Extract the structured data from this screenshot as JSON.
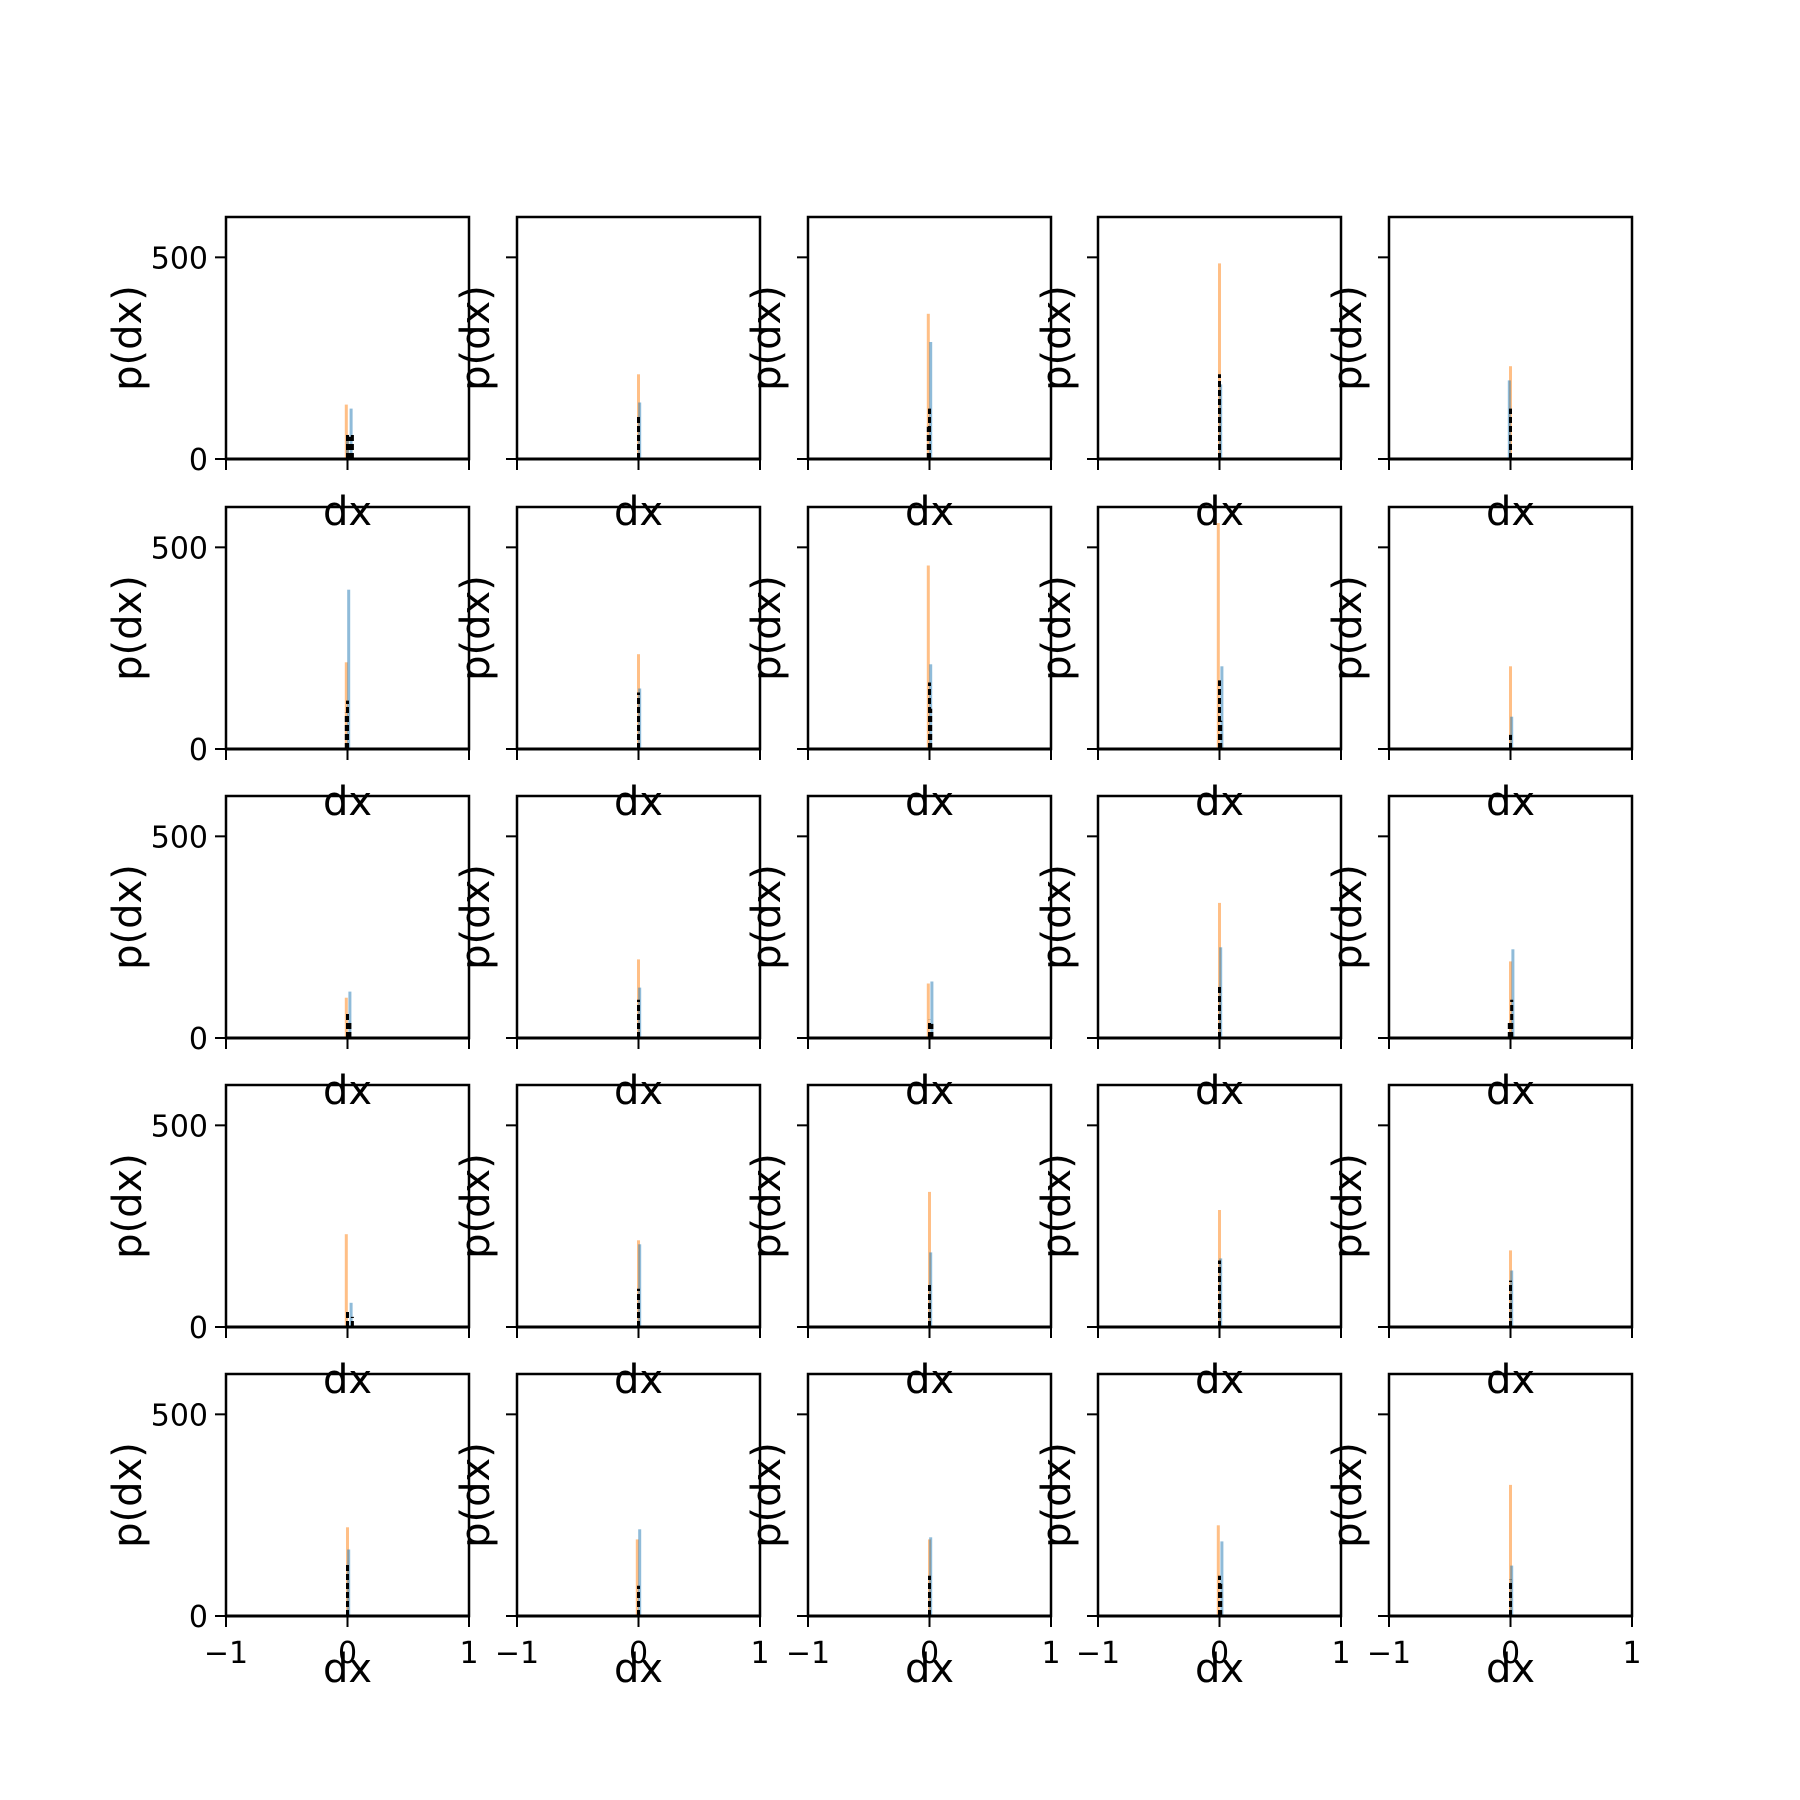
{
  "figure": {
    "background": "#ffffff"
  },
  "style": {
    "blue": "#1f77b4",
    "orange": "#ff7f0e",
    "black": "#000000",
    "bar_alpha": 0.5
  },
  "chart_data": {
    "type": "histogram-grid",
    "rows": 5,
    "cols": 5,
    "sharex": true,
    "sharey": true,
    "xlim": [
      -1,
      1
    ],
    "ylim": [
      0,
      600
    ],
    "xticks": [
      -1,
      0,
      1
    ],
    "xtick_labels": [
      "−1",
      "0",
      "1"
    ],
    "yticks": [
      0,
      500
    ],
    "ytick_labels": [
      "0",
      "500"
    ],
    "xlabel": "dx",
    "ylabel": "p(dx)",
    "series_colors": {
      "blue": "#1f77b4",
      "orange": "#ff7f0e",
      "black": "#000000"
    },
    "panels": [
      {
        "row": 0,
        "col": 0,
        "orange": [
          [
            -0.01,
            135
          ],
          [
            0.0,
            60
          ]
        ],
        "blue": [
          [
            0.03,
            125
          ],
          [
            0.0,
            50
          ]
        ],
        "black": [
          [
            0.0,
            65
          ],
          [
            0.02,
            55
          ],
          [
            0.04,
            60
          ]
        ]
      },
      {
        "row": 0,
        "col": 1,
        "orange": [
          [
            0.0,
            210
          ]
        ],
        "blue": [
          [
            0.01,
            140
          ]
        ],
        "black": [
          [
            0.0,
            105
          ]
        ]
      },
      {
        "row": 0,
        "col": 2,
        "orange": [
          [
            -0.01,
            360
          ]
        ],
        "blue": [
          [
            0.01,
            290
          ]
        ],
        "black": [
          [
            0.0,
            125
          ],
          [
            -0.01,
            80
          ]
        ]
      },
      {
        "row": 0,
        "col": 3,
        "orange": [
          [
            0.0,
            485
          ]
        ],
        "blue": [
          [
            0.01,
            185
          ]
        ],
        "black": [
          [
            0.0,
            210
          ]
        ]
      },
      {
        "row": 0,
        "col": 4,
        "orange": [
          [
            0.0,
            230
          ]
        ],
        "blue": [
          [
            -0.01,
            195
          ]
        ],
        "black": [
          [
            0.0,
            125
          ]
        ]
      },
      {
        "row": 1,
        "col": 0,
        "orange": [
          [
            -0.01,
            215
          ]
        ],
        "blue": [
          [
            0.01,
            395
          ]
        ],
        "black": [
          [
            0.0,
            120
          ],
          [
            -0.01,
            90
          ]
        ]
      },
      {
        "row": 1,
        "col": 1,
        "orange": [
          [
            0.0,
            235
          ]
        ],
        "blue": [
          [
            0.01,
            150
          ]
        ],
        "black": [
          [
            0.0,
            140
          ]
        ]
      },
      {
        "row": 1,
        "col": 2,
        "orange": [
          [
            -0.01,
            455
          ]
        ],
        "blue": [
          [
            0.01,
            210
          ]
        ],
        "black": [
          [
            0.0,
            165
          ],
          [
            0.01,
            100
          ]
        ]
      },
      {
        "row": 1,
        "col": 3,
        "orange": [
          [
            -0.01,
            560
          ]
        ],
        "blue": [
          [
            0.02,
            205
          ]
        ],
        "black": [
          [
            0.0,
            170
          ],
          [
            0.01,
            70
          ]
        ]
      },
      {
        "row": 1,
        "col": 4,
        "orange": [
          [
            0.0,
            205
          ]
        ],
        "blue": [
          [
            0.01,
            80
          ]
        ],
        "black": [
          [
            0.0,
            35
          ]
        ]
      },
      {
        "row": 2,
        "col": 0,
        "orange": [
          [
            -0.01,
            100
          ]
        ],
        "blue": [
          [
            0.02,
            115
          ]
        ],
        "black": [
          [
            0.0,
            60
          ],
          [
            0.02,
            40
          ]
        ]
      },
      {
        "row": 2,
        "col": 1,
        "orange": [
          [
            0.0,
            195
          ]
        ],
        "blue": [
          [
            0.01,
            125
          ]
        ],
        "black": [
          [
            0.0,
            95
          ]
        ]
      },
      {
        "row": 2,
        "col": 2,
        "orange": [
          [
            -0.01,
            135
          ]
        ],
        "blue": [
          [
            0.02,
            140
          ]
        ],
        "black": [
          [
            0.0,
            45
          ],
          [
            0.02,
            35
          ]
        ]
      },
      {
        "row": 2,
        "col": 3,
        "orange": [
          [
            0.0,
            335
          ]
        ],
        "blue": [
          [
            0.01,
            225
          ]
        ],
        "black": [
          [
            0.0,
            130
          ]
        ]
      },
      {
        "row": 2,
        "col": 4,
        "orange": [
          [
            0.0,
            190
          ]
        ],
        "blue": [
          [
            0.02,
            220
          ]
        ],
        "black": [
          [
            0.01,
            95
          ],
          [
            -0.01,
            40
          ]
        ]
      },
      {
        "row": 3,
        "col": 0,
        "orange": [
          [
            -0.01,
            230
          ]
        ],
        "blue": [
          [
            0.03,
            60
          ]
        ],
        "black": [
          [
            0.0,
            40
          ],
          [
            0.04,
            25
          ]
        ]
      },
      {
        "row": 3,
        "col": 1,
        "orange": [
          [
            0.0,
            215
          ]
        ],
        "blue": [
          [
            0.01,
            205
          ]
        ],
        "black": [
          [
            0.0,
            95
          ]
        ]
      },
      {
        "row": 3,
        "col": 2,
        "orange": [
          [
            0.0,
            335
          ]
        ],
        "blue": [
          [
            0.01,
            185
          ]
        ],
        "black": [
          [
            0.0,
            105
          ]
        ]
      },
      {
        "row": 3,
        "col": 3,
        "orange": [
          [
            0.0,
            290
          ]
        ],
        "blue": [
          [
            0.01,
            170
          ]
        ],
        "black": [
          [
            0.0,
            165
          ]
        ]
      },
      {
        "row": 3,
        "col": 4,
        "orange": [
          [
            0.0,
            190
          ]
        ],
        "blue": [
          [
            0.01,
            140
          ]
        ],
        "black": [
          [
            0.0,
            115
          ]
        ]
      },
      {
        "row": 4,
        "col": 0,
        "orange": [
          [
            0.0,
            220
          ]
        ],
        "blue": [
          [
            0.01,
            165
          ]
        ],
        "black": [
          [
            0.0,
            130
          ]
        ]
      },
      {
        "row": 4,
        "col": 1,
        "orange": [
          [
            -0.01,
            190
          ]
        ],
        "blue": [
          [
            0.01,
            215
          ]
        ],
        "black": [
          [
            0.0,
            75
          ]
        ]
      },
      {
        "row": 4,
        "col": 2,
        "orange": [
          [
            0.0,
            190
          ]
        ],
        "blue": [
          [
            0.01,
            195
          ]
        ],
        "black": [
          [
            0.0,
            100
          ]
        ]
      },
      {
        "row": 4,
        "col": 3,
        "orange": [
          [
            -0.01,
            225
          ]
        ],
        "blue": [
          [
            0.02,
            185
          ]
        ],
        "black": [
          [
            0.0,
            100
          ],
          [
            0.01,
            80
          ]
        ]
      },
      {
        "row": 4,
        "col": 4,
        "orange": [
          [
            0.0,
            325
          ]
        ],
        "blue": [
          [
            0.01,
            125
          ]
        ],
        "black": [
          [
            0.0,
            90
          ]
        ]
      }
    ]
  }
}
